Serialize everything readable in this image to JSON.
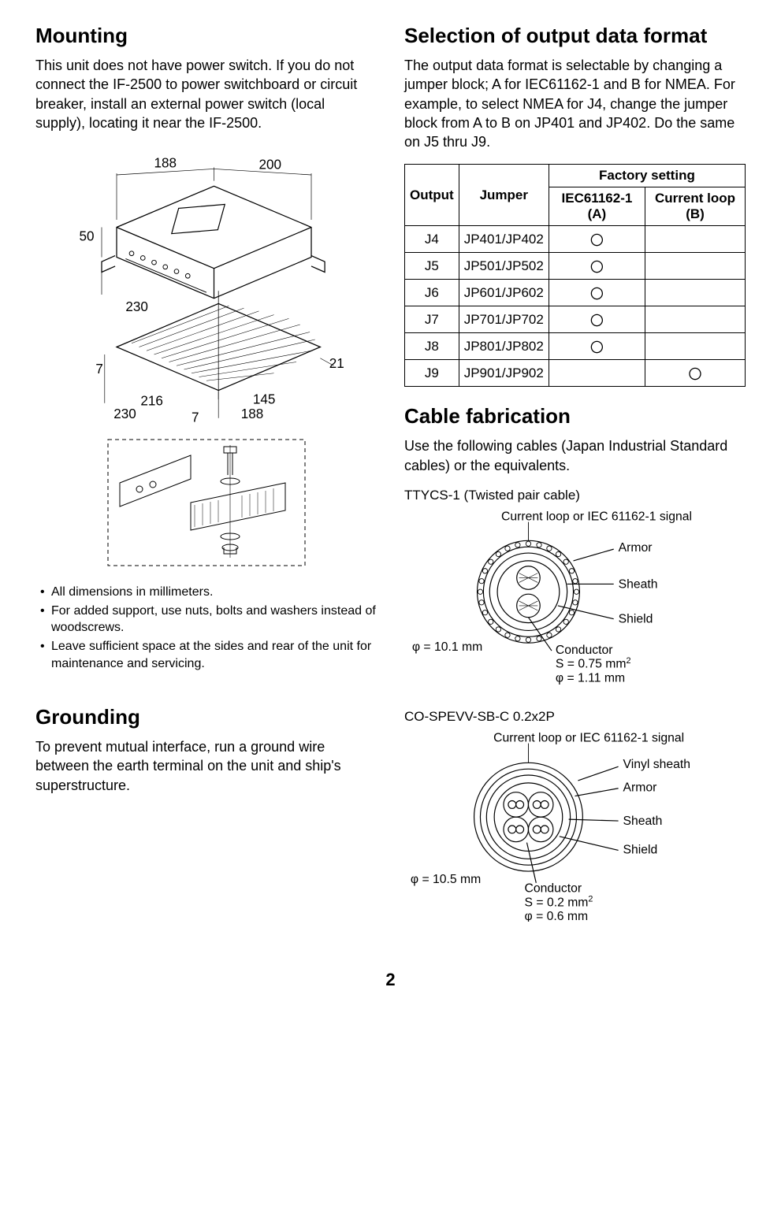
{
  "left": {
    "mounting": {
      "title": "Mounting",
      "body": "This unit does not have power switch. If you do not connect the IF-2500 to power switchboard or circuit breaker, install an external power switch (local supply), locating it near the IF-2500.",
      "dims": {
        "d188a": "188",
        "d200": "200",
        "d50": "50",
        "d230a": "230",
        "d7a": "7",
        "d21": "21",
        "d216": "216",
        "d230b": "230",
        "d145": "145",
        "d188b": "188",
        "d7b": "7"
      },
      "notes": [
        "All dimensions in millimeters.",
        "For added support, use nuts, bolts and washers instead of woodscrews.",
        "Leave sufficient space at the sides and rear of the unit for maintenance and servicing."
      ]
    },
    "grounding": {
      "title": "Grounding",
      "body": "To prevent mutual interface, run a ground wire between the earth terminal on the unit and ship's superstructure."
    }
  },
  "right": {
    "selection": {
      "title": "Selection of output data format",
      "body": "The output data format is selectable by changing a jumper block; A for IEC61162-1 and B for NMEA. For example, to select NMEA for J4, change the jumper block from A to B on JP401 and JP402. Do the same on J5 thru J9.",
      "table": {
        "header_factory": "Factory setting",
        "cols": [
          "Output",
          "Jumper",
          "IEC61162-1 (A)",
          "Current loop (B)"
        ],
        "rows": [
          {
            "out": "J4",
            "jmp": "JP401/JP402",
            "a": "〇",
            "b": ""
          },
          {
            "out": "J5",
            "jmp": "JP501/JP502",
            "a": "〇",
            "b": ""
          },
          {
            "out": "J6",
            "jmp": "JP601/JP602",
            "a": "〇",
            "b": ""
          },
          {
            "out": "J7",
            "jmp": "JP701/JP702",
            "a": "〇",
            "b": ""
          },
          {
            "out": "J8",
            "jmp": "JP801/JP802",
            "a": "〇",
            "b": ""
          },
          {
            "out": "J9",
            "jmp": "JP901/JP902",
            "a": "",
            "b": "〇"
          }
        ]
      }
    },
    "cable": {
      "title": "Cable fabrication",
      "body": "Use the following cables (Japan Industrial Standard cables) or the equivalents.",
      "c1": {
        "name": "TTYCS-1 (Twisted pair cable)",
        "signal": "Current loop or IEC 61162-1 signal",
        "armor": "Armor",
        "sheath": "Sheath",
        "shield": "Shield",
        "dia": "φ = 10.1 mm",
        "cond1": "Conductor",
        "cond2": "S = 0.75 mm",
        "cond2sup": "2",
        "cond3": "φ = 1.11 mm"
      },
      "c2": {
        "name": "CO-SPEVV-SB-C 0.2x2P",
        "signal": "Current loop or IEC 61162-1 signal",
        "vinyl": "Vinyl sheath",
        "armor": "Armor",
        "sheath": "Sheath",
        "shield": "Shield",
        "dia": "φ = 10.5 mm",
        "cond1": "Conductor",
        "cond2": "S = 0.2 mm",
        "cond2sup": "2",
        "cond3": "φ = 0.6 mm"
      }
    }
  },
  "page": "2",
  "styling": {
    "text_color": "#000000",
    "bg": "#ffffff",
    "h2_size": 26,
    "body_size": 18,
    "note_size": 16,
    "table_size": 17
  }
}
